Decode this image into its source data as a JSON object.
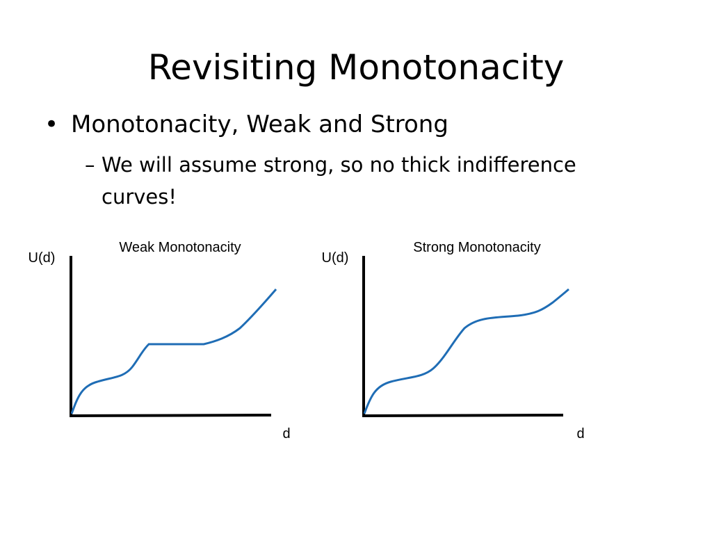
{
  "slide": {
    "title": "Revisiting Monotonacity",
    "bullet_1": "Monotonacity, Weak and Strong",
    "sub_dash": "–",
    "sub_bullet_1": "We will assume strong, so no thick indifference curves!"
  },
  "diagrams": [
    {
      "title": "Weak Monotonacity",
      "ylabel": "U(d)",
      "xlabel": "d",
      "curve_color": "#1f6db5",
      "has_flat_segment": true
    },
    {
      "title": "Strong Monotonacity",
      "ylabel": "U(d)",
      "xlabel": "d",
      "curve_color": "#1f6db5",
      "has_flat_segment": false
    }
  ]
}
